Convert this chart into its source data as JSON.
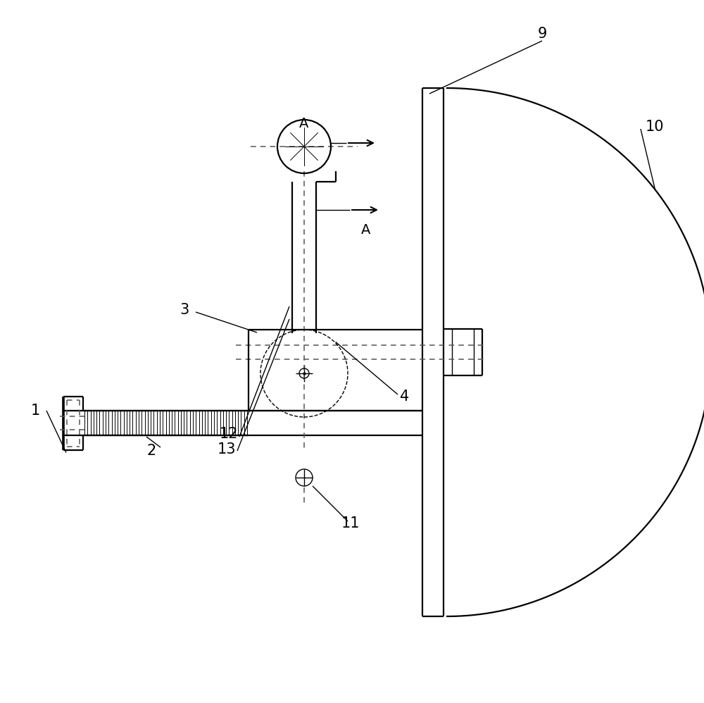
{
  "bg_color": "#ffffff",
  "line_color": "#000000",
  "fig_width": 10.0,
  "fig_height": 9.98,
  "lw_main": 1.6,
  "lw_thin": 1.0,
  "label_fs": 15,
  "arrow_fs": 14
}
